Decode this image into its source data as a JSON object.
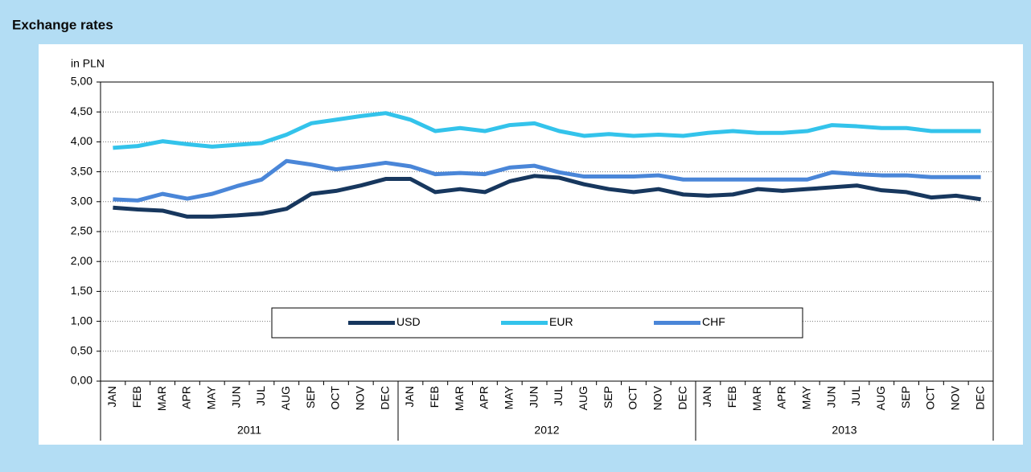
{
  "chart_data": {
    "type": "line",
    "title": "Exchange rates",
    "ylabel": "in  PLN",
    "categories": [
      "JAN",
      "FEB",
      "MAR",
      "APR",
      "MAY",
      "JUN",
      "JUL",
      "AUG",
      "SEP",
      "OCT",
      "NOV",
      "DEC",
      "JAN",
      "FEB",
      "MAR",
      "APR",
      "MAY",
      "JUN",
      "JUL",
      "AUG",
      "SEP",
      "OCT",
      "NOV",
      "DEC",
      "JAN",
      "FEB",
      "MAR",
      "APR",
      "MAY",
      "JUN",
      "JUL",
      "AUG",
      "SEP",
      "OCT",
      "NOV",
      "DEC"
    ],
    "years": [
      "2011",
      "2012",
      "2013"
    ],
    "series": [
      {
        "name": "USD",
        "color": "#17375e",
        "values": [
          2.9,
          2.87,
          2.85,
          2.75,
          2.75,
          2.77,
          2.8,
          2.88,
          3.13,
          3.18,
          3.27,
          3.38,
          3.38,
          3.16,
          3.21,
          3.16,
          3.34,
          3.43,
          3.4,
          3.29,
          3.21,
          3.16,
          3.21,
          3.12,
          3.1,
          3.12,
          3.21,
          3.18,
          3.21,
          3.24,
          3.27,
          3.19,
          3.16,
          3.07,
          3.1,
          3.04
        ]
      },
      {
        "name": "EUR",
        "color": "#33c3eb",
        "values": [
          3.9,
          3.93,
          4.01,
          3.96,
          3.92,
          3.95,
          3.98,
          4.12,
          4.31,
          4.37,
          4.43,
          4.48,
          4.37,
          4.18,
          4.23,
          4.18,
          4.28,
          4.31,
          4.18,
          4.1,
          4.13,
          4.1,
          4.12,
          4.1,
          4.15,
          4.18,
          4.15,
          4.15,
          4.18,
          4.28,
          4.26,
          4.23,
          4.23,
          4.18,
          4.18,
          4.18
        ]
      },
      {
        "name": "CHF",
        "color": "#4a86d8",
        "values": [
          3.04,
          3.02,
          3.13,
          3.05,
          3.13,
          3.26,
          3.37,
          3.68,
          3.62,
          3.54,
          3.59,
          3.65,
          3.59,
          3.46,
          3.48,
          3.46,
          3.57,
          3.6,
          3.49,
          3.42,
          3.42,
          3.42,
          3.44,
          3.37,
          3.37,
          3.37,
          3.37,
          3.37,
          3.37,
          3.49,
          3.46,
          3.44,
          3.44,
          3.41,
          3.41,
          3.41
        ]
      }
    ],
    "ylim": [
      0,
      5
    ],
    "yticks": [
      {
        "value": 0,
        "label": "0,00"
      },
      {
        "value": 0.5,
        "label": "0,50"
      },
      {
        "value": 1,
        "label": "1,00"
      },
      {
        "value": 1.5,
        "label": "1,50"
      },
      {
        "value": 2,
        "label": "2,00"
      },
      {
        "value": 2.5,
        "label": "2,50"
      },
      {
        "value": 3,
        "label": "3,00"
      },
      {
        "value": 3.5,
        "label": "3,50"
      },
      {
        "value": 4,
        "label": "4,00"
      },
      {
        "value": 4.5,
        "label": "4,50"
      },
      {
        "value": 5,
        "label": "5,00"
      }
    ],
    "grid": true,
    "legend": "center"
  }
}
